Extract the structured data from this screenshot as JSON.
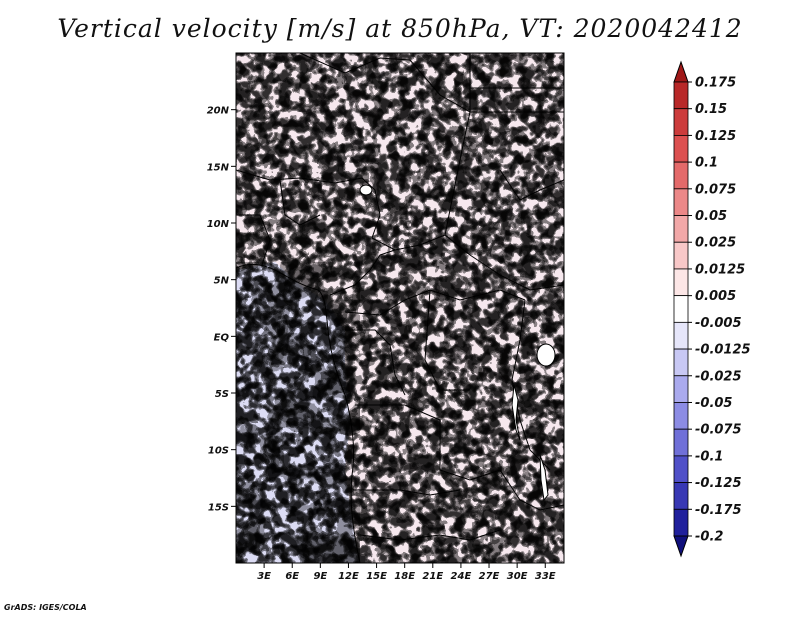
{
  "title": "Vertical velocity [m/s] at 850hPa, VT: 2020042412",
  "credit": "GrADS: IGES/COLA",
  "map": {
    "lat_range": [
      -20,
      25
    ],
    "lon_range": [
      0,
      35
    ],
    "y_ticks": [
      "20N",
      "15N",
      "10N",
      "5N",
      "EQ",
      "5S",
      "10S",
      "15S"
    ],
    "x_ticks": [
      "3E",
      "6E",
      "9E",
      "12E",
      "15E",
      "18E",
      "21E",
      "24E",
      "27E",
      "30E",
      "33E"
    ]
  },
  "colorbar": {
    "labels": [
      "0.175",
      "0.15",
      "0.125",
      "0.1",
      "0.075",
      "0.05",
      "0.025",
      "0.0125",
      "0.005",
      "-0.005",
      "-0.0125",
      "-0.025",
      "-0.05",
      "-0.075",
      "-0.1",
      "-0.125",
      "-0.175",
      "-0.2"
    ],
    "colors": [
      "#a01818",
      "#b82828",
      "#cc3c3c",
      "#dc5050",
      "#e46a6a",
      "#ec8888",
      "#f2a8a8",
      "#f8c8c8",
      "#fce6e6",
      "#ffffff",
      "#e6e6fa",
      "#c8c8f4",
      "#aaaaee",
      "#8c8ce4",
      "#7070d8",
      "#5050c8",
      "#3838b4",
      "#20209c",
      "#10107c"
    ]
  }
}
